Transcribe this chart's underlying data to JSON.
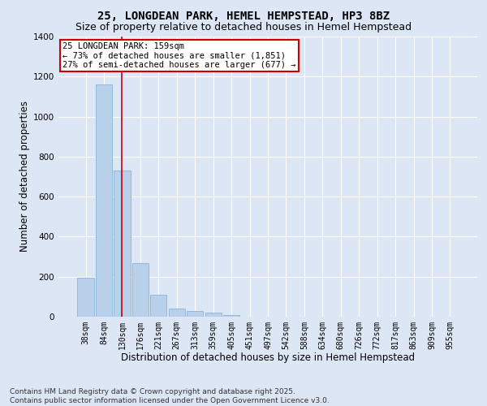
{
  "title_line1": "25, LONGDEAN PARK, HEMEL HEMPSTEAD, HP3 8BZ",
  "title_line2": "Size of property relative to detached houses in Hemel Hempstead",
  "xlabel": "Distribution of detached houses by size in Hemel Hempstead",
  "ylabel": "Number of detached properties",
  "categories": [
    "38sqm",
    "84sqm",
    "130sqm",
    "176sqm",
    "221sqm",
    "267sqm",
    "313sqm",
    "359sqm",
    "405sqm",
    "451sqm",
    "497sqm",
    "542sqm",
    "588sqm",
    "634sqm",
    "680sqm",
    "726sqm",
    "772sqm",
    "817sqm",
    "863sqm",
    "909sqm",
    "955sqm"
  ],
  "values": [
    193,
    1160,
    730,
    268,
    110,
    40,
    30,
    20,
    8,
    0,
    0,
    0,
    0,
    0,
    0,
    0,
    0,
    0,
    0,
    0,
    0
  ],
  "bar_color": "#b8d0ea",
  "bar_edge_color": "#7aadd4",
  "vline_x_index": 2,
  "vline_color": "#cc0000",
  "annotation_text": "25 LONGDEAN PARK: 159sqm\n← 73% of detached houses are smaller (1,851)\n27% of semi-detached houses are larger (677) →",
  "annotation_box_color": "#ffffff",
  "annotation_box_edge_color": "#cc0000",
  "ylim": [
    0,
    1400
  ],
  "yticks": [
    0,
    200,
    400,
    600,
    800,
    1000,
    1200,
    1400
  ],
  "background_color": "#dce6f5",
  "grid_color": "#ffffff",
  "footer_line1": "Contains HM Land Registry data © Crown copyright and database right 2025.",
  "footer_line2": "Contains public sector information licensed under the Open Government Licence v3.0.",
  "title_fontsize": 10,
  "subtitle_fontsize": 9,
  "axis_label_fontsize": 8.5,
  "tick_fontsize": 7,
  "annotation_fontsize": 7.5,
  "footer_fontsize": 6.5
}
